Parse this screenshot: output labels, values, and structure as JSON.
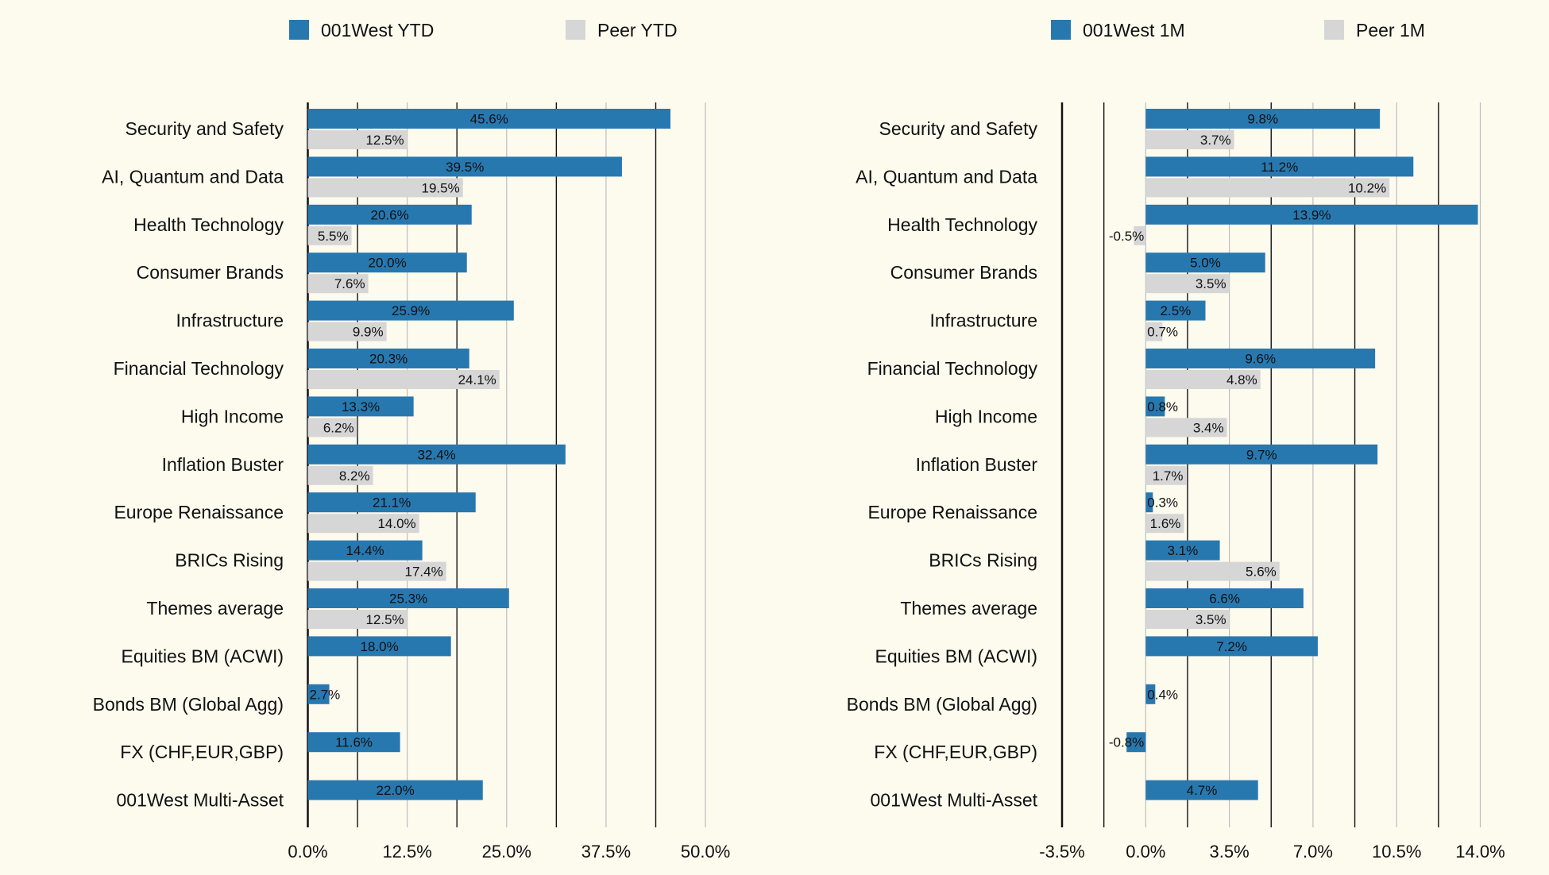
{
  "colors": {
    "primary": "#2878b0",
    "peer": "#d6d6d6",
    "background": "#fdfaee"
  },
  "chart_data": [
    {
      "type": "bar",
      "orientation": "horizontal",
      "title": "",
      "legend": {
        "placement": "top",
        "entries": [
          "001West YTD",
          "Peer YTD"
        ]
      },
      "categories": [
        "Security and Safety",
        "AI, Quantum and Data",
        "Health Technology",
        "Consumer Brands",
        "Infrastructure",
        "Financial Technology",
        "High Income",
        "Inflation Buster",
        "Europe Renaissance",
        "BRICs Rising",
        "Themes average",
        "Equities BM (ACWI)",
        "Bonds BM (Global Agg)",
        "FX (CHF,EUR,GBP)",
        "001West Multi-Asset"
      ],
      "series": [
        {
          "name": "001West YTD",
          "values": [
            45.6,
            39.5,
            20.6,
            20.0,
            25.9,
            20.3,
            13.3,
            32.4,
            21.1,
            14.4,
            25.3,
            18.0,
            2.7,
            11.6,
            22.0
          ]
        },
        {
          "name": "Peer YTD",
          "values": [
            12.5,
            19.5,
            5.5,
            7.6,
            9.9,
            24.1,
            6.2,
            8.2,
            14.0,
            17.4,
            12.5,
            null,
            null,
            null,
            null
          ]
        }
      ],
      "xlim": [
        0,
        52.5
      ],
      "xticks": [
        "0.0%",
        "12.5%",
        "25.0%",
        "37.5%",
        "50.0%"
      ],
      "xtick_values": [
        0,
        12.5,
        25,
        37.5,
        50
      ],
      "grid_step": 6.25,
      "grid": true
    },
    {
      "type": "bar",
      "orientation": "horizontal",
      "title": "",
      "legend": {
        "placement": "top",
        "entries": [
          "001West 1M",
          "Peer 1M"
        ]
      },
      "categories": [
        "Security and Safety",
        "AI, Quantum and Data",
        "Health Technology",
        "Consumer Brands",
        "Infrastructure",
        "Financial Technology",
        "High Income",
        "Inflation Buster",
        "Europe Renaissance",
        "BRICs Rising",
        "Themes average",
        "Equities BM (ACWI)",
        "Bonds BM (Global Agg)",
        "FX (CHF,EUR,GBP)",
        "001West Multi-Asset"
      ],
      "series": [
        {
          "name": "001West 1M",
          "values": [
            9.8,
            11.2,
            13.9,
            5.0,
            2.5,
            9.6,
            0.8,
            9.7,
            0.3,
            3.1,
            6.6,
            7.2,
            0.4,
            -0.8,
            4.7
          ]
        },
        {
          "name": "Peer 1M",
          "values": [
            3.7,
            10.2,
            -0.5,
            3.5,
            0.7,
            4.8,
            3.4,
            1.7,
            1.6,
            5.6,
            3.5,
            null,
            null,
            null,
            null
          ]
        }
      ],
      "xlim": [
        -3.5,
        14.0
      ],
      "xticks": [
        "-3.5%",
        "0.0%",
        "3.5%",
        "7.0%",
        "10.5%",
        "14.0%"
      ],
      "xtick_values": [
        -3.5,
        0,
        3.5,
        7,
        10.5,
        14
      ],
      "grid_step": 1.75,
      "grid": true
    }
  ]
}
